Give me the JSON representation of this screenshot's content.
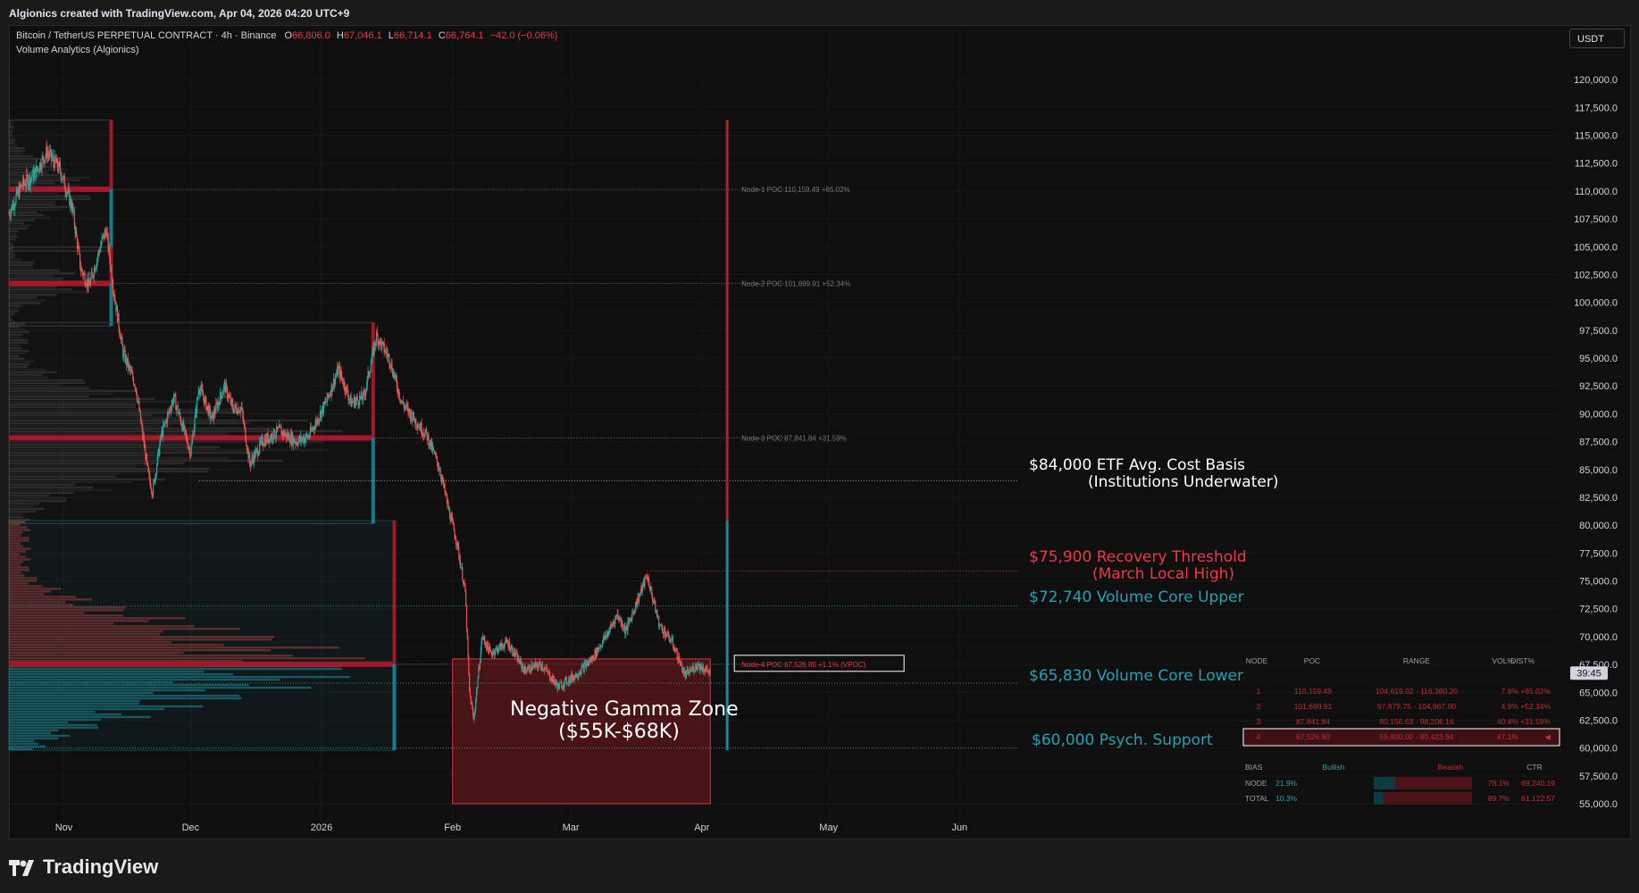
{
  "header": {
    "credit": "Algionics created with TradingView.com, Apr 04, 2026 04:20 UTC+9"
  },
  "legend": {
    "symbol": "Bitcoin / TetherUS PERPETUAL CONTRACT · 4h · Binance",
    "o_label": "O",
    "o_value": "66,806.0",
    "h_label": "H",
    "h_value": "67,046.1",
    "l_label": "L",
    "l_value": "66,714.1",
    "c_label": "C",
    "c_value": "66,764.1",
    "change": "−42.0 (−0.06%)",
    "indicator": "Volume Analytics (Algionics)"
  },
  "currency": "USDT",
  "countdown": "39:45",
  "footer": {
    "brand": "TradingView"
  },
  "annotations": {
    "etf_line1": "$84,000 ETF Avg. Cost Basis",
    "etf_line2": "(Institutions Underwater)",
    "recovery_line1": "$75,900 Recovery Threshold",
    "recovery_line2": "(March Local High)",
    "core_upper": "$72,740 Volume Core Upper",
    "core_lower": "$65,830 Volume Core Lower",
    "psych": "$60,000 Psych. Support",
    "gamma_line1": "Negative Gamma Zone",
    "gamma_line2": "($55K-$68K)"
  },
  "colors": {
    "bg": "#0f0f0f",
    "up": "#26a69a",
    "down": "#ef5350",
    "red": "#f23645",
    "teal": "#22a3b5",
    "white": "#ffffff",
    "grid": "#1c1c1c"
  },
  "chart_data": {
    "type": "candlestick",
    "ylim": [
      53000,
      122500
    ],
    "y_ticks": [
      "120,000.0",
      "117,500.0",
      "115,000.0",
      "112,500.0",
      "110,000.0",
      "107,500.0",
      "105,000.0",
      "102,500.0",
      "100,000.0",
      "97,500.0",
      "95,000.0",
      "92,500.0",
      "90,000.0",
      "87,500.0",
      "85,000.0",
      "82,500.0",
      "80,000.0",
      "77,500.0",
      "75,000.0",
      "72,500.0",
      "70,000.0",
      "67,500.0",
      "65,000.0",
      "62,500.0",
      "60,000.0",
      "57,500.0",
      "55,000.0"
    ],
    "x_labels": [
      {
        "label": "Nov",
        "date": "2025-11-01"
      },
      {
        "label": "Dec",
        "date": "2025-12-01"
      },
      {
        "label": "2026",
        "date": "2026-01-01"
      },
      {
        "label": "Feb",
        "date": "2026-02-01"
      },
      {
        "label": "Mar",
        "date": "2026-03-01"
      },
      {
        "label": "Apr",
        "date": "2026-04-01"
      },
      {
        "label": "May",
        "date": "2026-05-01"
      },
      {
        "label": "Jun",
        "date": "2026-06-01"
      }
    ],
    "xlim": [
      "2025-10-19",
      "2026-06-17"
    ],
    "price_path": [
      [
        "2025-10-19",
        108000
      ],
      [
        "2025-10-22",
        110500
      ],
      [
        "2025-10-25",
        111500
      ],
      [
        "2025-10-28",
        113500
      ],
      [
        "2025-10-31",
        112000
      ],
      [
        "2025-11-03",
        108500
      ],
      [
        "2025-11-05",
        103000
      ],
      [
        "2025-11-07",
        101500
      ],
      [
        "2025-11-10",
        105500
      ],
      [
        "2025-11-11",
        106500
      ],
      [
        "2025-11-13",
        100500
      ],
      [
        "2025-11-15",
        95500
      ],
      [
        "2025-11-18",
        92500
      ],
      [
        "2025-11-21",
        84500
      ],
      [
        "2025-11-22",
        83000
      ],
      [
        "2025-11-24",
        88000
      ],
      [
        "2025-11-27",
        91500
      ],
      [
        "2025-12-01",
        86500
      ],
      [
        "2025-12-03",
        92500
      ],
      [
        "2025-12-06",
        89500
      ],
      [
        "2025-12-09",
        92500
      ],
      [
        "2025-12-11",
        90500
      ],
      [
        "2025-12-13",
        90500
      ],
      [
        "2025-12-15",
        85500
      ],
      [
        "2025-12-18",
        87500
      ],
      [
        "2025-12-22",
        88500
      ],
      [
        "2025-12-26",
        87500
      ],
      [
        "2025-12-29",
        88000
      ],
      [
        "2026-01-02",
        91000
      ],
      [
        "2026-01-05",
        94000
      ],
      [
        "2026-01-08",
        91000
      ],
      [
        "2026-01-11",
        91500
      ],
      [
        "2026-01-14",
        97000
      ],
      [
        "2026-01-17",
        95000
      ],
      [
        "2026-01-20",
        91000
      ],
      [
        "2026-01-23",
        89500
      ],
      [
        "2026-01-26",
        88000
      ],
      [
        "2026-01-29",
        85000
      ],
      [
        "2026-01-31",
        81500
      ],
      [
        "2026-02-02",
        78500
      ],
      [
        "2026-02-04",
        74000
      ],
      [
        "2026-02-05",
        65000
      ],
      [
        "2026-02-06",
        62500
      ],
      [
        "2026-02-08",
        70000
      ],
      [
        "2026-02-10",
        68500
      ],
      [
        "2026-02-14",
        69500
      ],
      [
        "2026-02-18",
        67000
      ],
      [
        "2026-02-22",
        67500
      ],
      [
        "2026-02-26",
        65500
      ],
      [
        "2026-03-02",
        66500
      ],
      [
        "2026-03-06",
        68000
      ],
      [
        "2026-03-10",
        70500
      ],
      [
        "2026-03-12",
        72000
      ],
      [
        "2026-03-14",
        70500
      ],
      [
        "2026-03-17",
        73500
      ],
      [
        "2026-03-19",
        75500
      ],
      [
        "2026-03-22",
        71000
      ],
      [
        "2026-03-25",
        69500
      ],
      [
        "2026-03-28",
        66500
      ],
      [
        "2026-03-31",
        67500
      ],
      [
        "2026-04-03",
        66764
      ]
    ],
    "last_close": 66764.1,
    "levels": [
      {
        "name": "ETF Avg. Cost Basis",
        "value": 84000,
        "style": "dotted-white"
      },
      {
        "name": "Recovery Threshold",
        "value": 75900,
        "style": "dotted-red"
      },
      {
        "name": "Volume Core Upper",
        "value": 72740,
        "style": "dotted-teal"
      },
      {
        "name": "Volume Core Lower",
        "value": 65830,
        "style": "dotted-teal"
      },
      {
        "name": "Psych. Support",
        "value": 60000,
        "style": "dotted-teal"
      }
    ],
    "nodes": [
      {
        "label": "Node-1 POC 110,159.49 +65.02%",
        "poc": 110159.49,
        "range": [
          104619.02,
          116380.2
        ],
        "start": "2025-10-19",
        "end": "2025-11-12"
      },
      {
        "label": "Node-2 POC 101,699.91 +52.34%",
        "poc": 101699.91,
        "range": [
          97879.75,
          104967.9
        ],
        "start": "2025-10-19",
        "end": "2025-11-12"
      },
      {
        "label": "Node-3 POC 87,841.84 +31.59%",
        "poc": 87841.84,
        "range": [
          80156.63,
          98206.16
        ],
        "start": "2025-10-19",
        "end": "2026-01-13"
      },
      {
        "label": "Node-4 POC 67,526.80 +1.1% (VPOC)",
        "poc": 67526.8,
        "range": [
          59800.0,
          80423.94
        ],
        "start": "2025-10-19",
        "end": "2026-01-18"
      }
    ],
    "gamma_zone": {
      "from": "2026-02-01",
      "to": "2026-04-03",
      "low": 55000,
      "high": 68000
    },
    "table": {
      "headers": [
        "NODE",
        "POC",
        "RANGE",
        "VOL%",
        "DIST%"
      ],
      "rows": [
        [
          "1",
          "110,159.49",
          "104,619.02 - 116,380.20",
          "7.8%",
          "+65.02%"
        ],
        [
          "2",
          "101,699.91",
          "97,879.75 - 104,967.90",
          "4.9%",
          "+52.34%"
        ],
        [
          "3",
          "87,841.84",
          "80,156.63 - 98,206.16",
          "40.4%",
          "+31.59%"
        ],
        [
          "4",
          "67,526.80",
          "59,800.00 - 80,423.94",
          "47.1%",
          "◀"
        ]
      ],
      "bias_label": "BIAS",
      "bullish": "Bullish",
      "bearish": "Bearish",
      "ctr": "CTR",
      "bias_rows": [
        {
          "name": "NODE",
          "bull": "21.9%",
          "bear": "78.1%",
          "ctr": "69,240.19",
          "bull_frac": 0.219
        },
        {
          "name": "TOTAL",
          "bull": "10.3%",
          "bear": "89.7%",
          "ctr": "81,122.57",
          "bull_frac": 0.103
        }
      ]
    }
  }
}
